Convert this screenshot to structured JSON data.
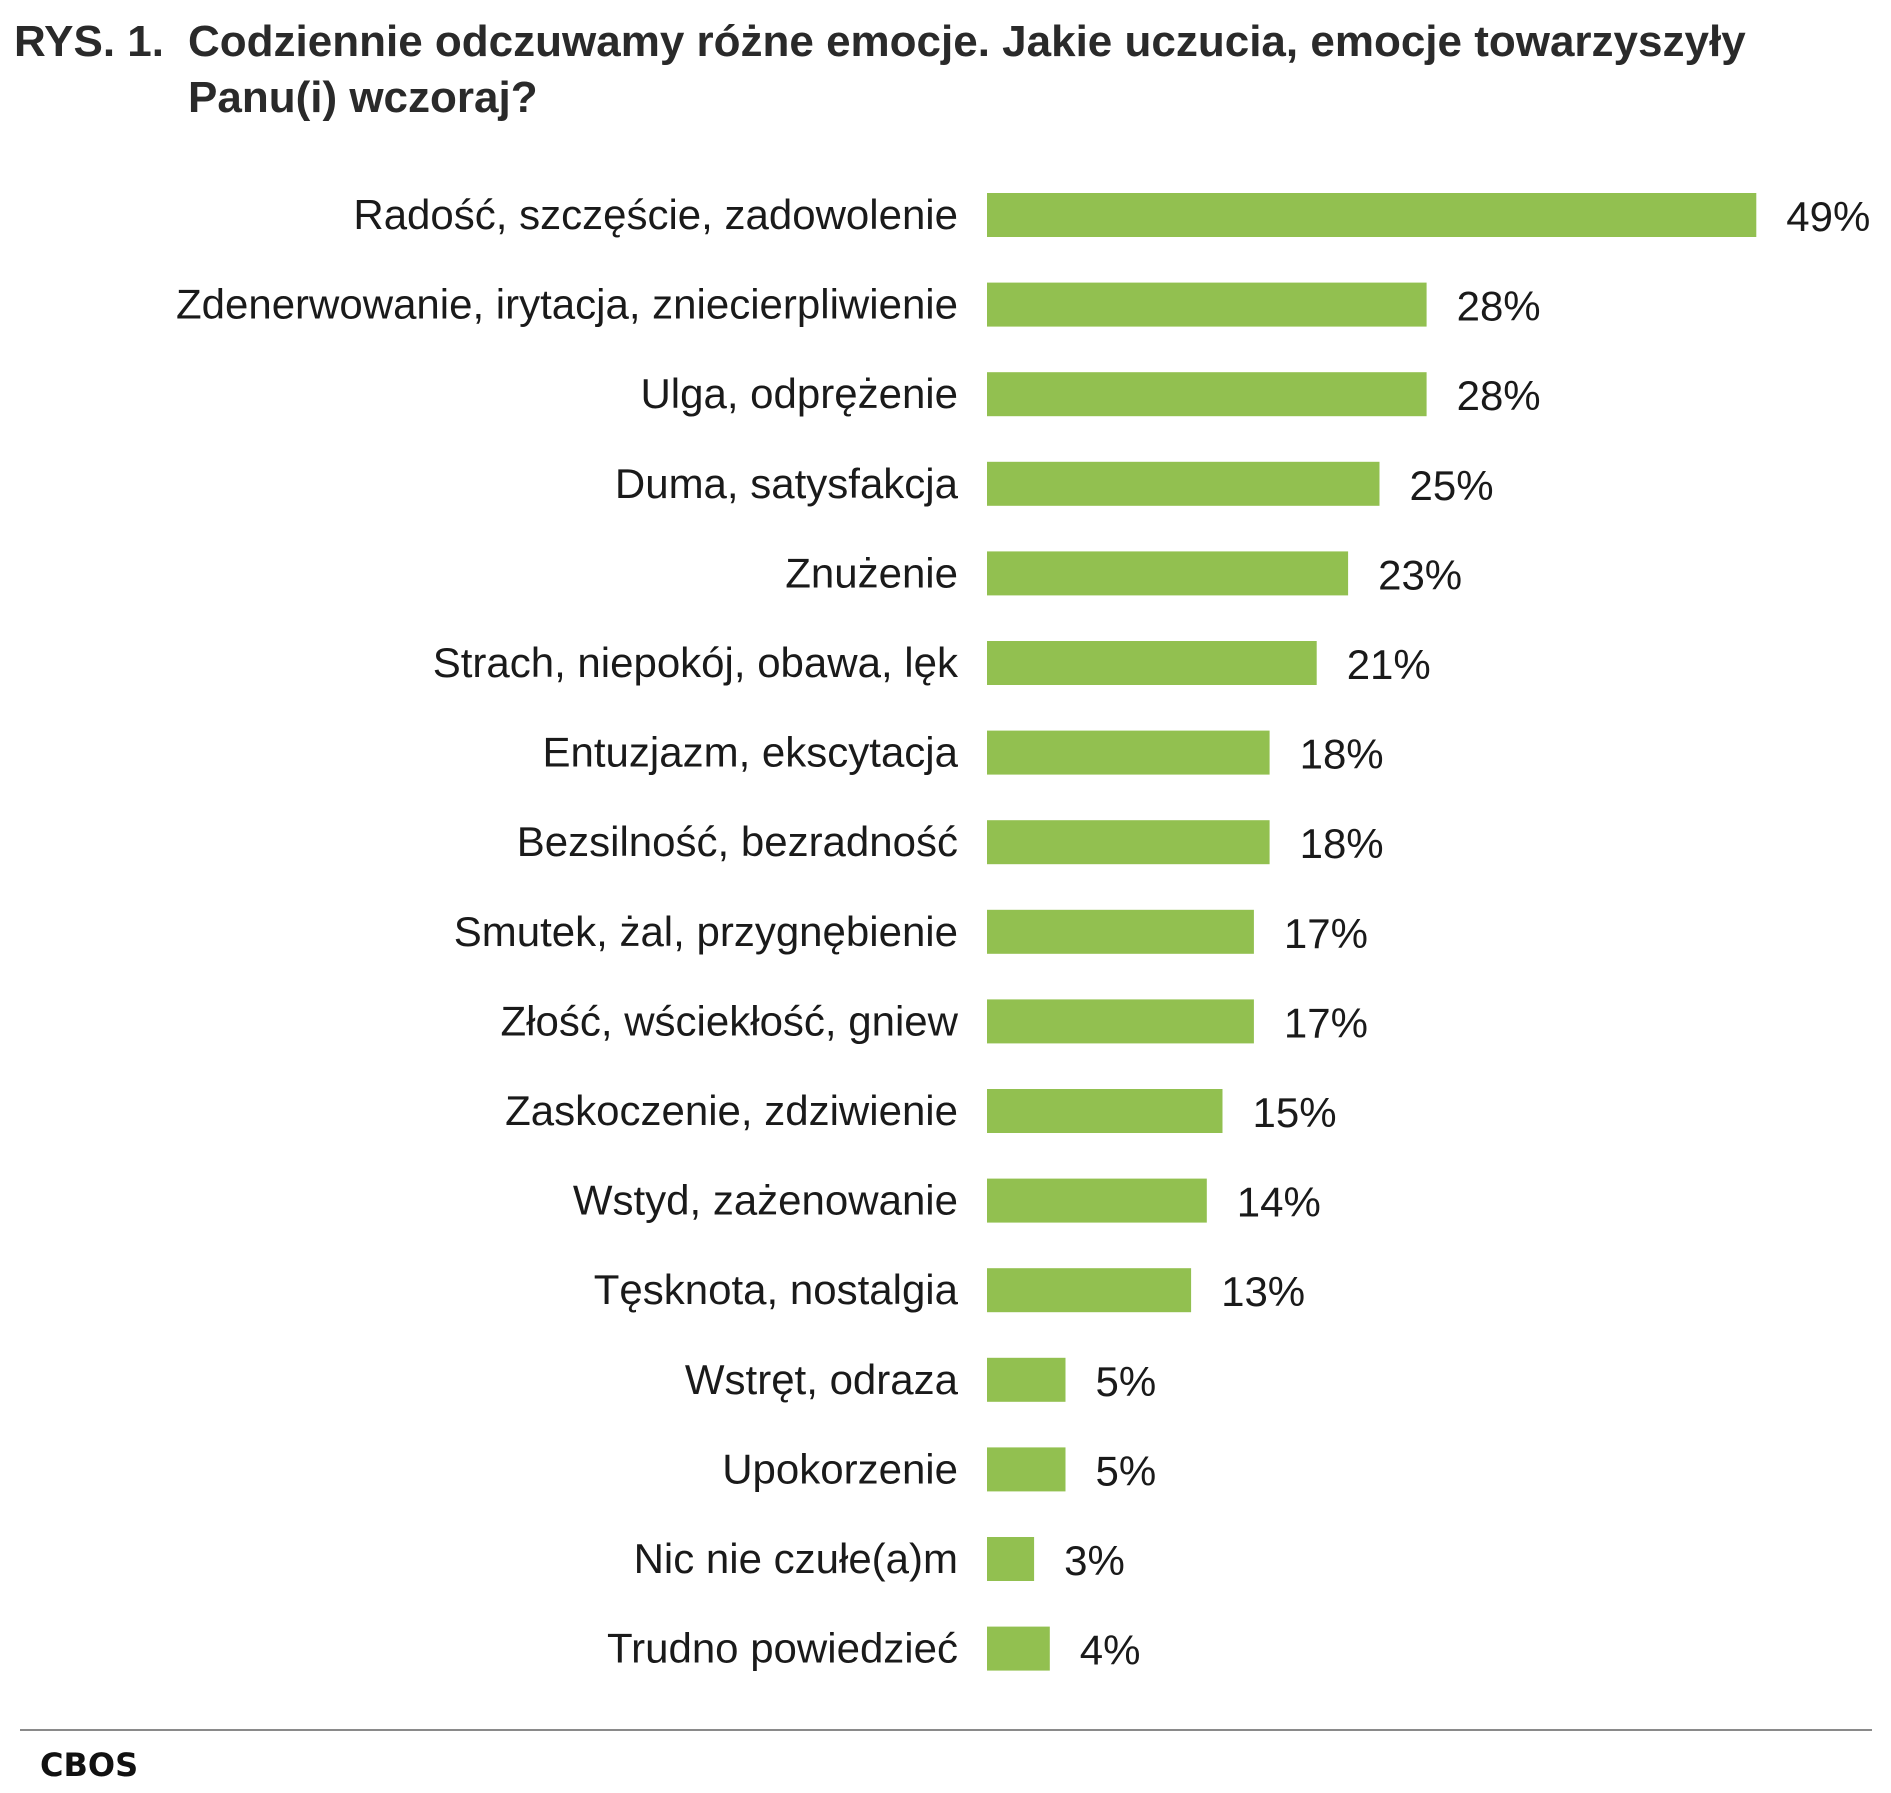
{
  "title": {
    "prefix": "RYS. 1.",
    "text": "Codziennie odczuwamy różne emocje. Jakie uczucia, emocje towarzyszyły Panu(i) wczoraj?"
  },
  "source": "CBOS",
  "chart_data": {
    "type": "bar",
    "orientation": "horizontal",
    "bar_color": "#92c050",
    "categories": [
      "Radość, szczęście, zadowolenie",
      "Zdenerwowanie, irytacja, zniecierpliwienie",
      "Ulga, odprężenie",
      "Duma, satysfakcja",
      "Znużenie",
      "Strach, niepokój, obawa, lęk",
      "Entuzjazm, ekscytacja",
      "Bezsilność, bezradność",
      "Smutek, żal, przygnębienie",
      "Złość, wściekłość, gniew",
      "Zaskoczenie, zdziwienie",
      "Wstyd, zażenowanie",
      "Tęsknota, nostalgia",
      "Wstręt, odraza",
      "Upokorzenie",
      "Nic nie czułe(a)m",
      "Trudno powiedzieć"
    ],
    "values": [
      49,
      28,
      28,
      25,
      23,
      21,
      18,
      18,
      17,
      17,
      15,
      14,
      13,
      5,
      5,
      3,
      4
    ],
    "value_labels": [
      "49%",
      "28%",
      "28%",
      "25%",
      "23%",
      "21%",
      "18%",
      "18%",
      "17%",
      "17%",
      "15%",
      "14%",
      "13%",
      "5%",
      "5%",
      "3%",
      "4%"
    ],
    "grid": false,
    "legend": "none"
  }
}
